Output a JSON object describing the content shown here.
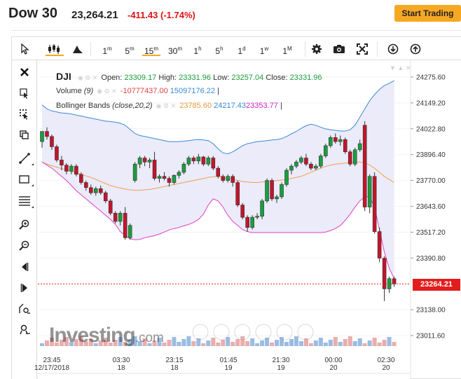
{
  "header": {
    "title": "Dow 30",
    "price": "23,264.21",
    "change": "-411.43 (-1.74%)",
    "cta_label": "Start Trading"
  },
  "toolbar": {
    "timeframes": [
      {
        "label": "1",
        "sup": "m",
        "active": false
      },
      {
        "label": "5",
        "sup": "m",
        "active": false
      },
      {
        "label": "15",
        "sup": "m",
        "active": true
      },
      {
        "label": "30",
        "sup": "m",
        "active": false
      },
      {
        "label": "1",
        "sup": "h",
        "active": false
      },
      {
        "label": "5",
        "sup": "h",
        "active": false
      },
      {
        "label": "1",
        "sup": "d",
        "active": false
      },
      {
        "label": "1",
        "sup": "w",
        "active": false
      },
      {
        "label": "1",
        "sup": "M",
        "active": false
      }
    ],
    "icons": [
      "cursor-icon",
      "candles-icon",
      "area-chart-icon",
      "settings-icon",
      "camera-icon",
      "fullscreen-icon",
      "download-icon",
      "upload-icon"
    ]
  },
  "sidebar": {
    "icons": [
      "close-icon",
      "crosshair-icon",
      "pattern-icon",
      "copy-icon",
      "trend-line-icon",
      "rectangle-icon",
      "fib-lines-icon",
      "zoom-in-icon",
      "zoom-out-icon",
      "scroll-left-icon",
      "scroll-right-icon",
      "measure-icon",
      "magnet-icon"
    ]
  },
  "legend": {
    "symbol": "DJI",
    "ohlc": {
      "open_label": "Open:",
      "open": "23309.17",
      "high_label": "High:",
      "high": "23331.96",
      "low_label": "Low:",
      "low": "23257.04",
      "close_label": "Close:",
      "close": "23331.96"
    },
    "volume": {
      "label": "Volume",
      "params": "(9)",
      "v1": "-10777437.00",
      "v2": "15097176.22",
      "sep": "|"
    },
    "bollinger": {
      "label": "Bollinger Bands",
      "params": "(close,20,2)",
      "mid": "23785.60",
      "upper": "24217.43",
      "lower": "23353.77",
      "sep": "|"
    }
  },
  "price_tag": "23264.21",
  "watermark": {
    "brand": "Investing",
    "suffix": ".com"
  },
  "colors": {
    "up": "#1a9e3f",
    "down": "#c2152b",
    "upper_band": "#3a8ad4",
    "mid_band": "#f0a050",
    "lower_band": "#e040c0",
    "band_fill": "#ebebfa",
    "accent": "#f7a823",
    "price_tag": "#e11d1d"
  },
  "chart_data": {
    "type": "candlestick",
    "y_ticks": [
      24275.6,
      24149.2,
      24022.8,
      23896.4,
      23770.0,
      23643.6,
      23517.2,
      23390.8,
      23138.0,
      23011.6
    ],
    "y_tick_labels": [
      "24275.60",
      "24149.20",
      "24022.80",
      "23896.40",
      "23770.00",
      "23643.60",
      "23517.20",
      "23390.80",
      "23138.00",
      "23011.60"
    ],
    "ylim": [
      22990,
      24330
    ],
    "current_price": 23264.21,
    "x_labels": [
      {
        "time": "23:45",
        "date": "12/17/2018"
      },
      {
        "time": "03:30",
        "date": "18"
      },
      {
        "time": "23:15",
        "date": "18"
      },
      {
        "time": "01:45",
        "date": "19"
      },
      {
        "time": "21:30",
        "date": "19"
      },
      {
        "time": "00:00",
        "date": "20"
      },
      {
        "time": "02:30",
        "date": "20"
      }
    ],
    "candles": [
      [
        23960,
        24010,
        23930,
        24010
      ],
      [
        24010,
        24030,
        23970,
        23985
      ],
      [
        23985,
        23995,
        23920,
        23935
      ],
      [
        23935,
        23945,
        23860,
        23870
      ],
      [
        23870,
        23890,
        23820,
        23845
      ],
      [
        23845,
        23855,
        23800,
        23815
      ],
      [
        23815,
        23850,
        23800,
        23840
      ],
      [
        23840,
        23850,
        23790,
        23800
      ],
      [
        23800,
        23810,
        23750,
        23760
      ],
      [
        23760,
        23770,
        23720,
        23735
      ],
      [
        23735,
        23750,
        23700,
        23710
      ],
      [
        23710,
        23740,
        23695,
        23730
      ],
      [
        23730,
        23745,
        23700,
        23710
      ],
      [
        23710,
        23720,
        23660,
        23670
      ],
      [
        23670,
        23680,
        23600,
        23610
      ],
      [
        23610,
        23620,
        23560,
        23570
      ],
      [
        23570,
        23620,
        23550,
        23610
      ],
      [
        23610,
        23640,
        23480,
        23490
      ],
      [
        23490,
        23560,
        23480,
        23550
      ],
      [
        23770,
        23860,
        23760,
        23850
      ],
      [
        23850,
        23890,
        23830,
        23880
      ],
      [
        23880,
        23890,
        23840,
        23860
      ],
      [
        23860,
        23880,
        23830,
        23870
      ],
      [
        23870,
        23910,
        23770,
        23780
      ],
      [
        23780,
        23800,
        23760,
        23790
      ],
      [
        23790,
        23810,
        23770,
        23780
      ],
      [
        23780,
        23790,
        23740,
        23760
      ],
      [
        23760,
        23800,
        23750,
        23795
      ],
      [
        23795,
        23820,
        23780,
        23810
      ],
      [
        23810,
        23860,
        23800,
        23850
      ],
      [
        23850,
        23890,
        23840,
        23880
      ],
      [
        23880,
        23890,
        23850,
        23865
      ],
      [
        23865,
        23900,
        23850,
        23885
      ],
      [
        23885,
        23890,
        23840,
        23850
      ],
      [
        23850,
        23890,
        23840,
        23880
      ],
      [
        23880,
        23890,
        23820,
        23830
      ],
      [
        23830,
        23840,
        23780,
        23790
      ],
      [
        23790,
        23800,
        23760,
        23770
      ],
      [
        23770,
        23800,
        23760,
        23790
      ],
      [
        23790,
        23800,
        23740,
        23760
      ],
      [
        23760,
        23770,
        23640,
        23650
      ],
      [
        23650,
        23660,
        23580,
        23590
      ],
      [
        23590,
        23600,
        23520,
        23540
      ],
      [
        23540,
        23600,
        23530,
        23590
      ],
      [
        23590,
        23610,
        23580,
        23595
      ],
      [
        23595,
        23680,
        23580,
        23670
      ],
      [
        23670,
        23780,
        23660,
        23770
      ],
      [
        23770,
        23780,
        23670,
        23680
      ],
      [
        23680,
        23700,
        23660,
        23690
      ],
      [
        23690,
        23760,
        23680,
        23750
      ],
      [
        23750,
        23830,
        23740,
        23820
      ],
      [
        23820,
        23850,
        23800,
        23840
      ],
      [
        23840,
        23870,
        23830,
        23860
      ],
      [
        23860,
        23890,
        23850,
        23880
      ],
      [
        23880,
        23900,
        23840,
        23850
      ],
      [
        23850,
        23860,
        23820,
        23830
      ],
      [
        23830,
        23850,
        23820,
        23840
      ],
      [
        23840,
        23900,
        23830,
        23890
      ],
      [
        23890,
        23950,
        23880,
        23940
      ],
      [
        23940,
        23990,
        23930,
        23980
      ],
      [
        23980,
        24000,
        23950,
        23960
      ],
      [
        23960,
        23990,
        23940,
        23970
      ],
      [
        23970,
        23980,
        23900,
        23910
      ],
      [
        23910,
        23920,
        23840,
        23850
      ],
      [
        23850,
        23930,
        23840,
        23920
      ],
      [
        23920,
        23970,
        23910,
        23950
      ],
      [
        24040,
        24060,
        23620,
        23640
      ],
      [
        23640,
        23800,
        23610,
        23790
      ],
      [
        23790,
        23810,
        23510,
        23520
      ],
      [
        23520,
        23540,
        23370,
        23390
      ],
      [
        23390,
        23400,
        23180,
        23240
      ],
      [
        23240,
        23300,
        23220,
        23290
      ],
      [
        23290,
        23300,
        23250,
        23264
      ]
    ],
    "upper_band": [
      24140,
      24120,
      24110,
      24105,
      24100,
      24098,
      24095,
      24090,
      24085,
      24080,
      24075,
      24070,
      24065,
      24060,
      24058,
      24055,
      24050,
      24040,
      24020,
      24000,
      23990,
      23985,
      23980,
      23975,
      23970,
      23965,
      23960,
      23960,
      23960,
      23962,
      23965,
      23968,
      23970,
      23968,
      23965,
      23950,
      23925,
      23905,
      23900,
      23910,
      23925,
      23940,
      23950,
      23955,
      23960,
      23962,
      23965,
      23968,
      23970,
      23975,
      23985,
      23998,
      24010,
      24025,
      24038,
      24045,
      24040,
      24030,
      24022,
      24018,
      24015,
      24012,
      24012,
      24018,
      24040,
      24080,
      24120,
      24160,
      24190,
      24215,
      24235,
      24245,
      24258
    ],
    "mid_band": [
      23860,
      23850,
      23842,
      23835,
      23828,
      23822,
      23815,
      23808,
      23800,
      23792,
      23785,
      23775,
      23765,
      23755,
      23745,
      23738,
      23733,
      23728,
      23724,
      23722,
      23722,
      23724,
      23726,
      23730,
      23735,
      23740,
      23745,
      23750,
      23755,
      23760,
      23765,
      23770,
      23775,
      23780,
      23785,
      23788,
      23790,
      23785,
      23780,
      23775,
      23770,
      23765,
      23762,
      23760,
      23760,
      23762,
      23765,
      23768,
      23770,
      23772,
      23775,
      23780,
      23785,
      23790,
      23800,
      23810,
      23820,
      23830,
      23838,
      23845,
      23850,
      23852,
      23855,
      23858,
      23860,
      23860,
      23855,
      23845,
      23830,
      23810,
      23790,
      23775,
      23760
    ],
    "lower_band": [
      23860,
      23845,
      23830,
      23810,
      23790,
      23770,
      23745,
      23720,
      23700,
      23680,
      23660,
      23640,
      23620,
      23600,
      23580,
      23555,
      23520,
      23500,
      23485,
      23480,
      23482,
      23490,
      23495,
      23500,
      23508,
      23518,
      23528,
      23535,
      23540,
      23548,
      23555,
      23565,
      23580,
      23605,
      23650,
      23680,
      23670,
      23640,
      23600,
      23570,
      23550,
      23530,
      23520,
      23515,
      23515,
      23515,
      23515,
      23515,
      23515,
      23515,
      23515,
      23515,
      23515,
      23515,
      23515,
      23515,
      23515,
      23515,
      23518,
      23525,
      23535,
      23550,
      23575,
      23605,
      23640,
      23670,
      23690,
      23690,
      23640,
      23530,
      23420,
      23340,
      23290
    ]
  }
}
